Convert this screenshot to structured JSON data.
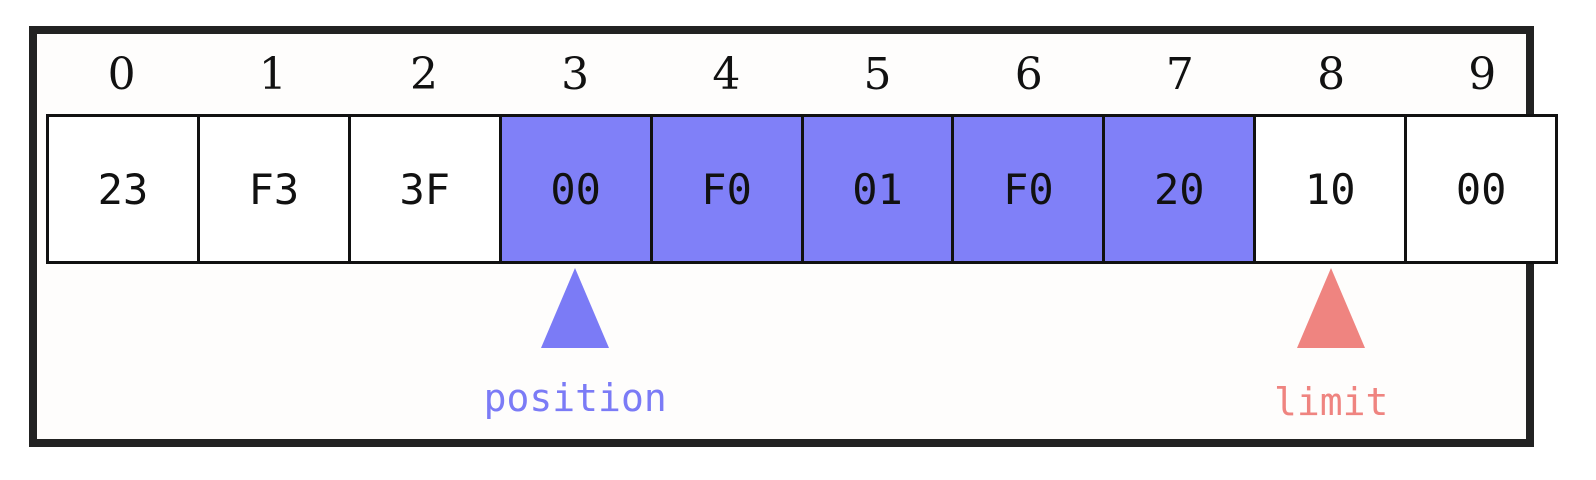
{
  "indices": [
    "0",
    "1",
    "2",
    "3",
    "4",
    "5",
    "6",
    "7",
    "8",
    "9"
  ],
  "cells": [
    "23",
    "F3",
    "3F",
    "00",
    "F0",
    "01",
    "F0",
    "20",
    "10",
    "00"
  ],
  "highlighted_range": {
    "start": 3,
    "end": 7
  },
  "colors": {
    "highlight": "#8080f8",
    "position": "#7b7bf6",
    "limit": "#ef8480",
    "border": "#222222"
  },
  "markers": {
    "position": {
      "label": "position",
      "index": 3,
      "color": "#7b7bf6"
    },
    "limit": {
      "label": "limit",
      "index": 8,
      "color": "#ef8480"
    }
  }
}
